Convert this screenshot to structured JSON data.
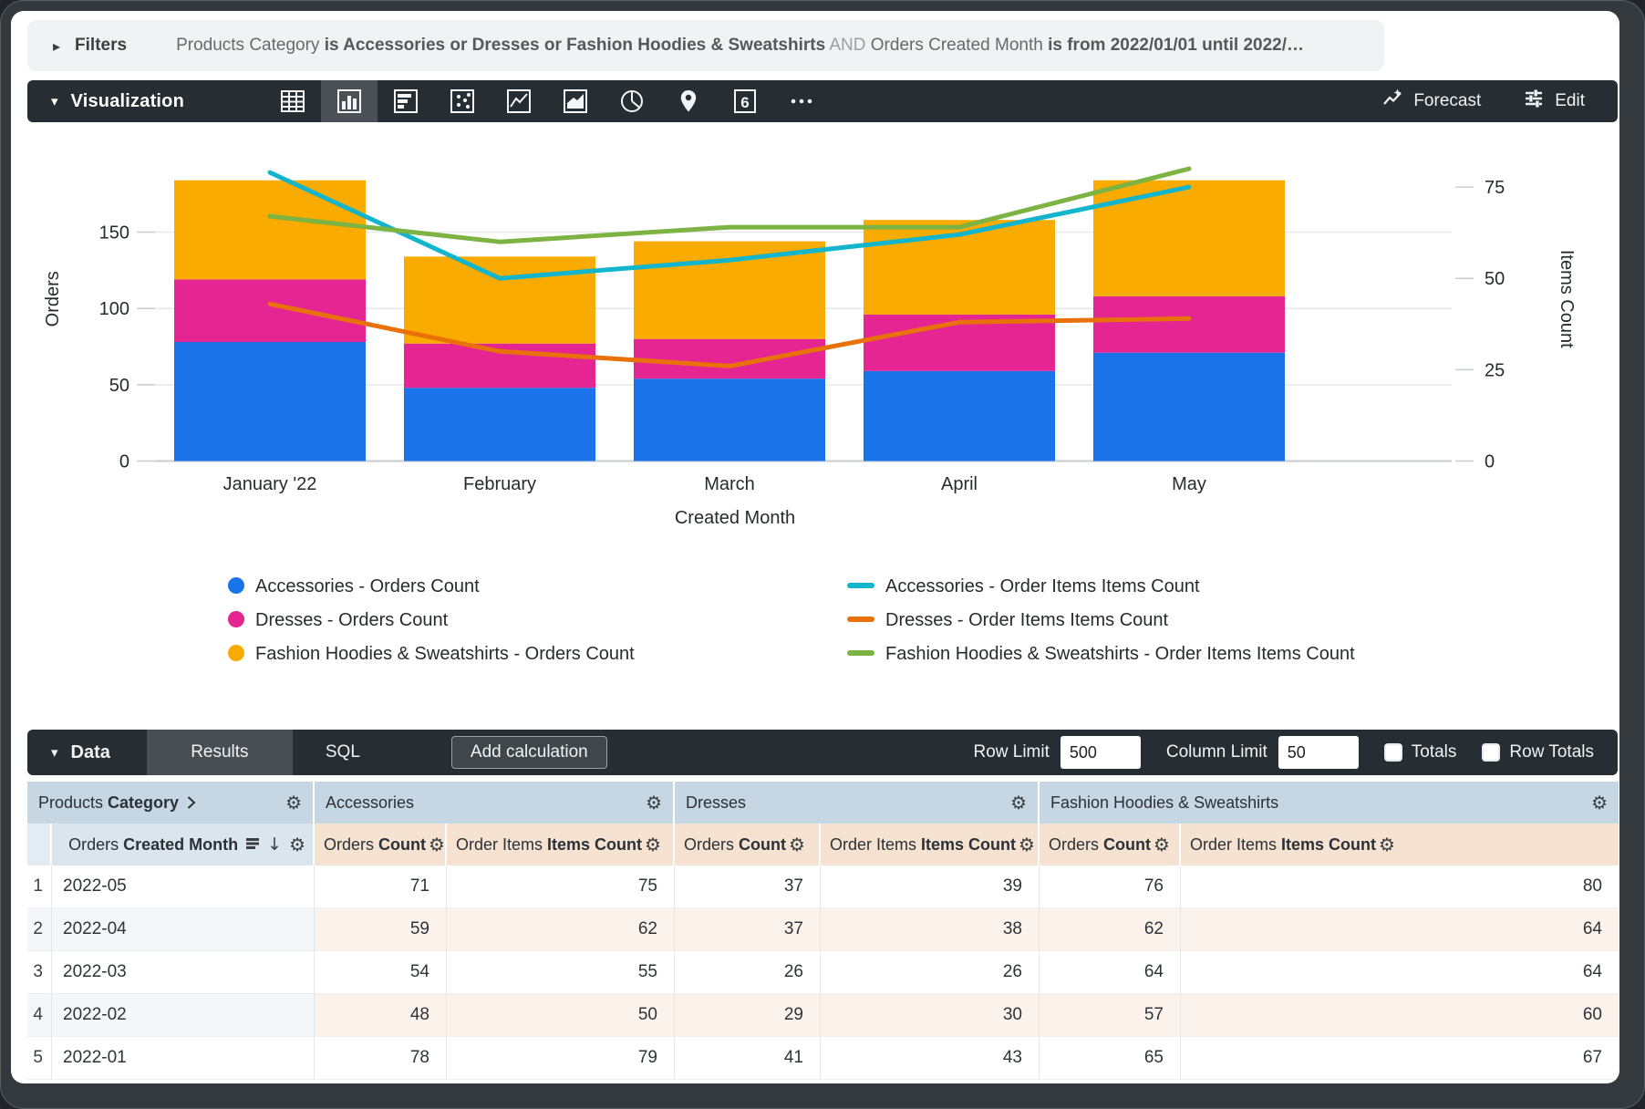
{
  "filters": {
    "label": "Filters",
    "segments": [
      {
        "text": "Products Category ",
        "style": "n"
      },
      {
        "text": "is Accessories or Dresses or Fashion Hoodies & Sweatshirts",
        "style": "b"
      },
      {
        "text": " AND ",
        "style": "l"
      },
      {
        "text": "Orders Created Month ",
        "style": "n"
      },
      {
        "text": "is from 2022/01/01 until 2022/…",
        "style": "b"
      }
    ]
  },
  "viz": {
    "title": "Visualization",
    "icons": [
      "table",
      "column",
      "bar",
      "scatter",
      "line",
      "area",
      "pie",
      "map",
      "single-value",
      "more"
    ],
    "selected_icon": "column",
    "forecast_label": "Forecast",
    "edit_label": "Edit"
  },
  "chart_data": {
    "type": "combo-stacked-bar-line",
    "x_categories": [
      "January '22",
      "February",
      "March",
      "April",
      "May"
    ],
    "x_axis_title": "Created Month",
    "left_axis": {
      "title": "Orders",
      "ticks": [
        0,
        50,
        100,
        150
      ],
      "max": 212.5
    },
    "right_axis": {
      "title": "Items Count",
      "ticks": [
        0,
        25,
        50,
        75
      ],
      "max": 88.75
    },
    "bar_series": [
      {
        "name": "Accessories - Orders Count",
        "color": "#1A73E8",
        "values": [
          78,
          48,
          54,
          59,
          71
        ]
      },
      {
        "name": "Dresses - Orders Count",
        "color": "#E52592",
        "values": [
          41,
          29,
          26,
          37,
          37
        ]
      },
      {
        "name": "Fashion Hoodies & Sweatshirts - Orders Count",
        "color": "#F9AB00",
        "values": [
          65,
          57,
          64,
          62,
          76
        ]
      }
    ],
    "line_series": [
      {
        "name": "Accessories - Order Items Items Count",
        "color": "#12B5CB",
        "values": [
          79,
          50,
          55,
          62,
          75
        ]
      },
      {
        "name": "Dresses - Order Items Items Count",
        "color": "#E8710A",
        "values": [
          43,
          30,
          26,
          38,
          39
        ]
      },
      {
        "name": "Fashion Hoodies & Sweatshirts - Order Items Items Count",
        "color": "#7CB342",
        "values": [
          67,
          60,
          64,
          64,
          80
        ]
      }
    ],
    "legend_position": "bottom-two-columns",
    "grid": true
  },
  "data_bar": {
    "title": "Data",
    "tabs": [
      "Results",
      "SQL"
    ],
    "active_tab": "Results",
    "add_calculation_label": "Add calculation",
    "row_limit_label": "Row Limit",
    "row_limit_value": "500",
    "column_limit_label": "Column Limit",
    "column_limit_value": "50",
    "totals_label": "Totals",
    "totals_checked": false,
    "row_totals_label": "Row Totals",
    "row_totals_checked": false
  },
  "table": {
    "groups": [
      {
        "prefix": "Products ",
        "bold": "Category",
        "chevron": true
      },
      {
        "prefix": "",
        "bold_off": "Accessories"
      },
      {
        "prefix": "",
        "bold_off": "Dresses"
      },
      {
        "prefix": "",
        "bold_off": "Fashion Hoodies & Sweatshirts"
      }
    ],
    "dimension_subheader": {
      "prefix": "Orders ",
      "bold": "Created Month",
      "sort_desc": true
    },
    "measure_subheaders": [
      {
        "prefix": "Orders ",
        "bold": "Count"
      },
      {
        "prefix": "Order Items ",
        "bold": "Items Count"
      },
      {
        "prefix": "Orders ",
        "bold": "Count"
      },
      {
        "prefix": "Order Items ",
        "bold": "Items Count"
      },
      {
        "prefix": "Orders ",
        "bold": "Count"
      },
      {
        "prefix": "Order Items ",
        "bold": "Items Count"
      }
    ],
    "rows": [
      {
        "dimension": "2022-05",
        "values": [
          71,
          75,
          37,
          39,
          76,
          80
        ]
      },
      {
        "dimension": "2022-04",
        "values": [
          59,
          62,
          37,
          38,
          62,
          64
        ]
      },
      {
        "dimension": "2022-03",
        "values": [
          54,
          55,
          26,
          26,
          64,
          64
        ]
      },
      {
        "dimension": "2022-02",
        "values": [
          48,
          50,
          29,
          30,
          57,
          60
        ]
      },
      {
        "dimension": "2022-01",
        "values": [
          78,
          79,
          41,
          43,
          65,
          67
        ]
      }
    ]
  }
}
